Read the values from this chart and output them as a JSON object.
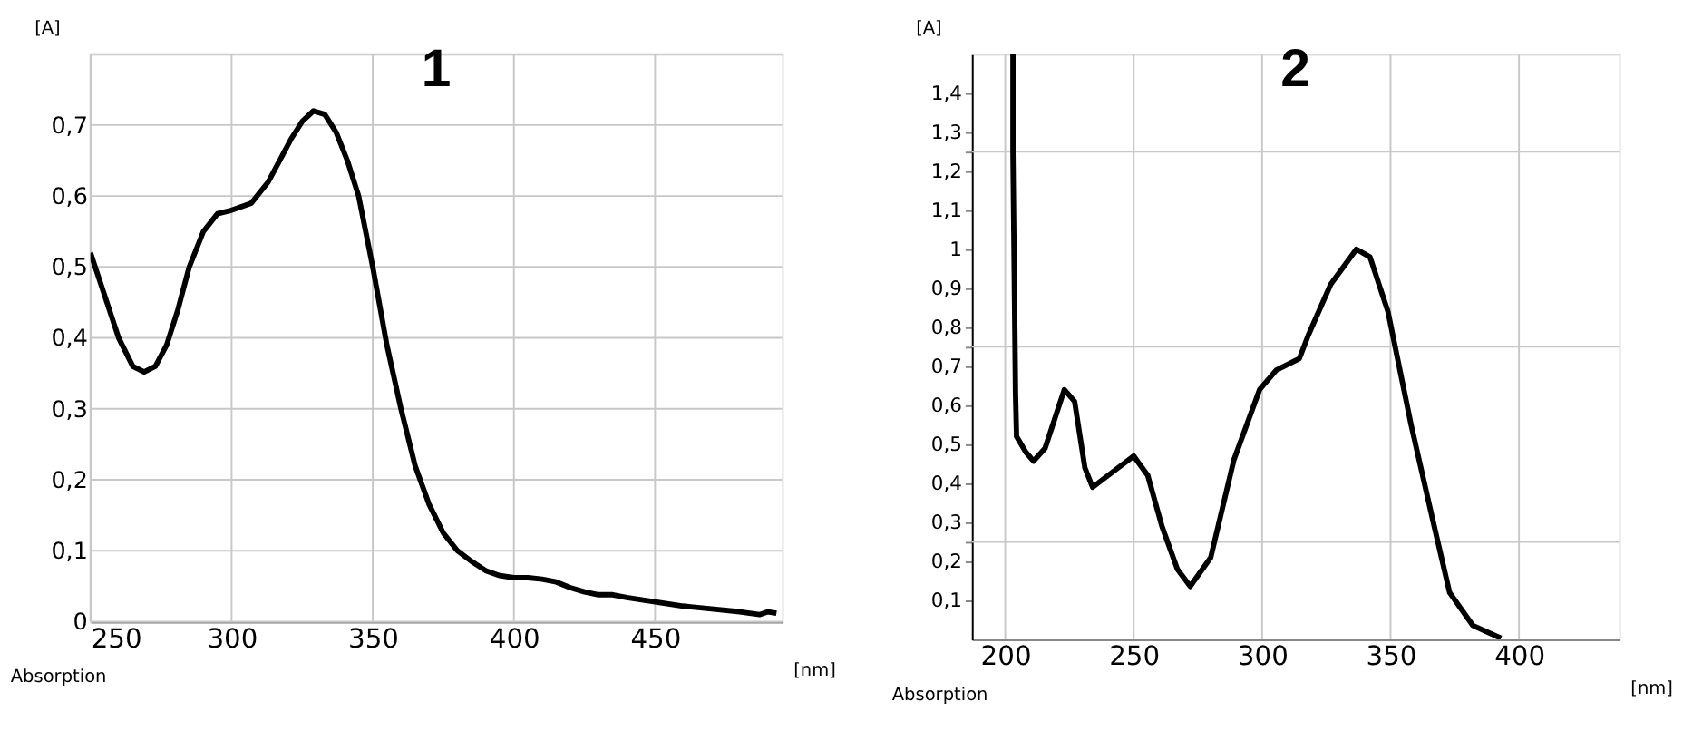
{
  "chart_data": [
    {
      "type": "line",
      "title": "1",
      "xlabel": "[nm]",
      "ylabel": "[A]",
      "annotations": [
        "Absorption"
      ],
      "grid": true,
      "marker": "none",
      "line_style": "solid",
      "xlim": [
        250,
        495
      ],
      "ylim": [
        0,
        0.8
      ],
      "xticks": [
        250,
        300,
        350,
        400,
        450
      ],
      "yticks": [
        0,
        {
          "value": 0.1,
          "label": "0,1"
        },
        {
          "value": 0.2,
          "label": "0,2"
        },
        {
          "value": 0.3,
          "label": "0,3"
        },
        {
          "value": 0.4,
          "label": "0,4"
        },
        {
          "value": 0.5,
          "label": "0,5"
        },
        {
          "value": 0.6,
          "label": "0,6"
        },
        {
          "value": 0.7,
          "label": "0,7"
        },
        {
          "value": 0.8,
          "label": null
        }
      ],
      "series": [
        {
          "color": "#000000",
          "x": [
            250,
            255,
            260,
            265,
            269,
            273,
            277,
            281,
            285,
            290,
            295,
            300,
            307,
            313,
            317,
            321,
            325,
            329,
            333,
            337,
            341,
            345,
            350,
            355,
            360,
            365,
            370,
            375,
            380,
            385,
            390,
            395,
            400,
            405,
            410,
            415,
            420,
            425,
            430,
            435,
            440,
            450,
            460,
            470,
            480,
            487,
            490,
            493
          ],
          "values": [
            0.52,
            0.46,
            0.4,
            0.36,
            0.352,
            0.36,
            0.39,
            0.44,
            0.5,
            0.55,
            0.575,
            0.58,
            0.59,
            0.62,
            0.65,
            0.68,
            0.705,
            0.72,
            0.715,
            0.69,
            0.65,
            0.6,
            0.5,
            0.39,
            0.3,
            0.22,
            0.165,
            0.125,
            0.1,
            0.085,
            0.072,
            0.065,
            0.062,
            0.062,
            0.06,
            0.056,
            0.048,
            0.042,
            0.038,
            0.038,
            0.034,
            0.028,
            0.022,
            0.018,
            0.014,
            0.01,
            0.014,
            0.012
          ]
        }
      ]
    },
    {
      "type": "line",
      "title": "2",
      "xlabel": "[nm]",
      "ylabel": "[A]",
      "annotations": [
        "Absorption"
      ],
      "grid": true,
      "marker": "none",
      "line_style": "solid",
      "xlim": [
        187,
        439
      ],
      "ylim": [
        0,
        1.5
      ],
      "xticks": [
        200,
        250,
        300,
        350,
        400
      ],
      "yticks": [
        {
          "value": 0.1,
          "label": "0,1"
        },
        {
          "value": 0.2,
          "label": "0,2"
        },
        {
          "value": 0.25,
          "label": null
        },
        {
          "value": 0.3,
          "label": "0,3"
        },
        {
          "value": 0.4,
          "label": "0,4"
        },
        {
          "value": 0.5,
          "label": "0,5"
        },
        {
          "value": 0.6,
          "label": "0,6"
        },
        {
          "value": 0.7,
          "label": "0,7"
        },
        {
          "value": 0.75,
          "label": null
        },
        {
          "value": 0.8,
          "label": "0,8"
        },
        {
          "value": 0.9,
          "label": "0,9"
        },
        1,
        {
          "value": 1.1,
          "label": "1,1"
        },
        {
          "value": 1.2,
          "label": "1,2"
        },
        {
          "value": 1.25,
          "label": null
        },
        {
          "value": 1.3,
          "label": "1,3"
        },
        {
          "value": 1.4,
          "label": "1,4"
        }
      ],
      "series": [
        {
          "color": "#000000",
          "x": [
            203,
            203,
            204,
            204.4,
            208,
            211,
            215.5,
            220,
            223,
            227,
            231,
            234,
            242,
            250,
            255.5,
            261,
            267,
            272,
            280,
            289,
            299,
            305.5,
            314.5,
            318,
            326.7,
            336.7,
            342,
            349,
            358,
            367,
            373,
            382,
            393
          ],
          "values": [
            1.5,
            1.25,
            0.63,
            0.52,
            0.48,
            0.457,
            0.49,
            0.58,
            0.64,
            0.61,
            0.44,
            0.39,
            0.43,
            0.47,
            0.42,
            0.29,
            0.18,
            0.136,
            0.21,
            0.46,
            0.64,
            0.69,
            0.72,
            0.78,
            0.91,
            1.0,
            0.98,
            0.84,
            0.55,
            0.29,
            0.12,
            0.036,
            0.003
          ]
        }
      ]
    }
  ]
}
